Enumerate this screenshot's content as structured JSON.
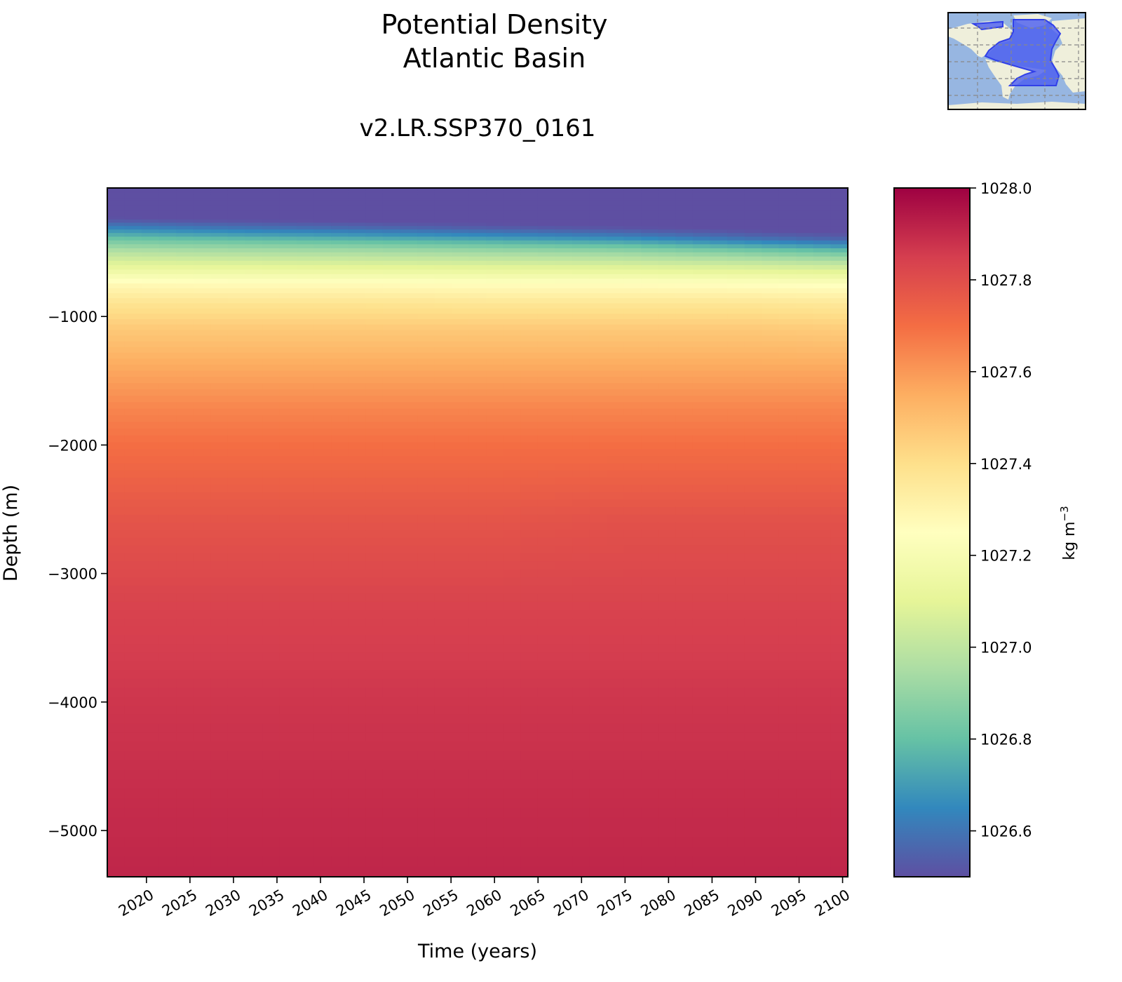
{
  "chart_data": {
    "type": "heatmap",
    "title": "Potential Density",
    "subtitle": "Atlantic Basin",
    "run_label": "v2.LR.SSP370_0161",
    "xlabel": "Time (years)",
    "ylabel": "Depth (m)",
    "xlim": [
      2015.5,
      2100.6
    ],
    "ylim": [
      -5360,
      0
    ],
    "xticks": [
      2020,
      2025,
      2030,
      2035,
      2040,
      2045,
      2050,
      2055,
      2060,
      2065,
      2070,
      2075,
      2080,
      2085,
      2090,
      2095,
      2100
    ],
    "yticks": [
      -1000,
      -2000,
      -3000,
      -4000,
      -5000
    ],
    "colorbar": {
      "label": "kg m",
      "label_exponent": "−3",
      "range": [
        1026.5,
        1028.0
      ],
      "ticks": [
        1026.6,
        1026.8,
        1027.0,
        1027.2,
        1027.4,
        1027.6,
        1027.8,
        1028.0
      ],
      "tick_labels": [
        "1026.6",
        "1026.8",
        "1027.0",
        "1027.2",
        "1027.4",
        "1027.6",
        "1027.8",
        "1028.0"
      ],
      "colormap": "Spectral_r",
      "colors": [
        "#5e4fa2",
        "#3288bd",
        "#66c2a5",
        "#abdda4",
        "#e6f598",
        "#ffffbf",
        "#fee08b",
        "#fdae61",
        "#f46d43",
        "#d53e4f",
        "#9e0142"
      ]
    },
    "grid": false,
    "times": [
      2016,
      2030,
      2045,
      2060,
      2075,
      2090,
      2100
    ],
    "depths": [
      0,
      -200,
      -250,
      -300,
      -350,
      -400,
      -450,
      -500,
      -600,
      -750,
      -900,
      -1100,
      -1400,
      -1700,
      -2000,
      -2600,
      -3200,
      -4000,
      -5000,
      -5360
    ],
    "values": [
      [
        1026.45,
        1026.48,
        1026.52,
        1026.62,
        1026.72,
        1026.82,
        1026.9,
        1026.98,
        1027.1,
        1027.28,
        1027.38,
        1027.47,
        1027.56,
        1027.64,
        1027.7,
        1027.78,
        1027.83,
        1027.87,
        1027.9,
        1027.91
      ],
      [
        1026.45,
        1026.47,
        1026.5,
        1026.58,
        1026.68,
        1026.79,
        1026.88,
        1026.96,
        1027.09,
        1027.27,
        1027.38,
        1027.47,
        1027.56,
        1027.64,
        1027.7,
        1027.78,
        1027.83,
        1027.87,
        1027.9,
        1027.91
      ],
      [
        1026.45,
        1026.46,
        1026.49,
        1026.55,
        1026.65,
        1026.76,
        1026.86,
        1026.95,
        1027.08,
        1027.27,
        1027.38,
        1027.47,
        1027.56,
        1027.64,
        1027.7,
        1027.78,
        1027.83,
        1027.87,
        1027.9,
        1027.91
      ],
      [
        1026.45,
        1026.46,
        1026.48,
        1026.52,
        1026.61,
        1026.72,
        1026.83,
        1026.93,
        1027.07,
        1027.26,
        1027.37,
        1027.47,
        1027.56,
        1027.64,
        1027.7,
        1027.78,
        1027.83,
        1027.87,
        1027.9,
        1027.91
      ],
      [
        1026.45,
        1026.45,
        1026.47,
        1026.5,
        1026.57,
        1026.68,
        1026.8,
        1026.91,
        1027.06,
        1027.26,
        1027.37,
        1027.47,
        1027.56,
        1027.64,
        1027.7,
        1027.79,
        1027.83,
        1027.87,
        1027.9,
        1027.91
      ],
      [
        1026.45,
        1026.45,
        1026.46,
        1026.48,
        1026.52,
        1026.6,
        1026.73,
        1026.86,
        1027.04,
        1027.25,
        1027.37,
        1027.47,
        1027.56,
        1027.64,
        1027.7,
        1027.79,
        1027.83,
        1027.87,
        1027.9,
        1027.91
      ],
      [
        1026.45,
        1026.45,
        1026.46,
        1026.47,
        1026.5,
        1026.56,
        1026.68,
        1026.82,
        1027.02,
        1027.24,
        1027.36,
        1027.46,
        1027.56,
        1027.64,
        1027.7,
        1027.79,
        1027.83,
        1027.87,
        1027.9,
        1027.91
      ]
    ],
    "inset_map": {
      "region": "Atlantic Basin",
      "ocean_color": "#97b6e1",
      "land_color": "#efefdb",
      "region_color": "#4a5cf0"
    }
  }
}
